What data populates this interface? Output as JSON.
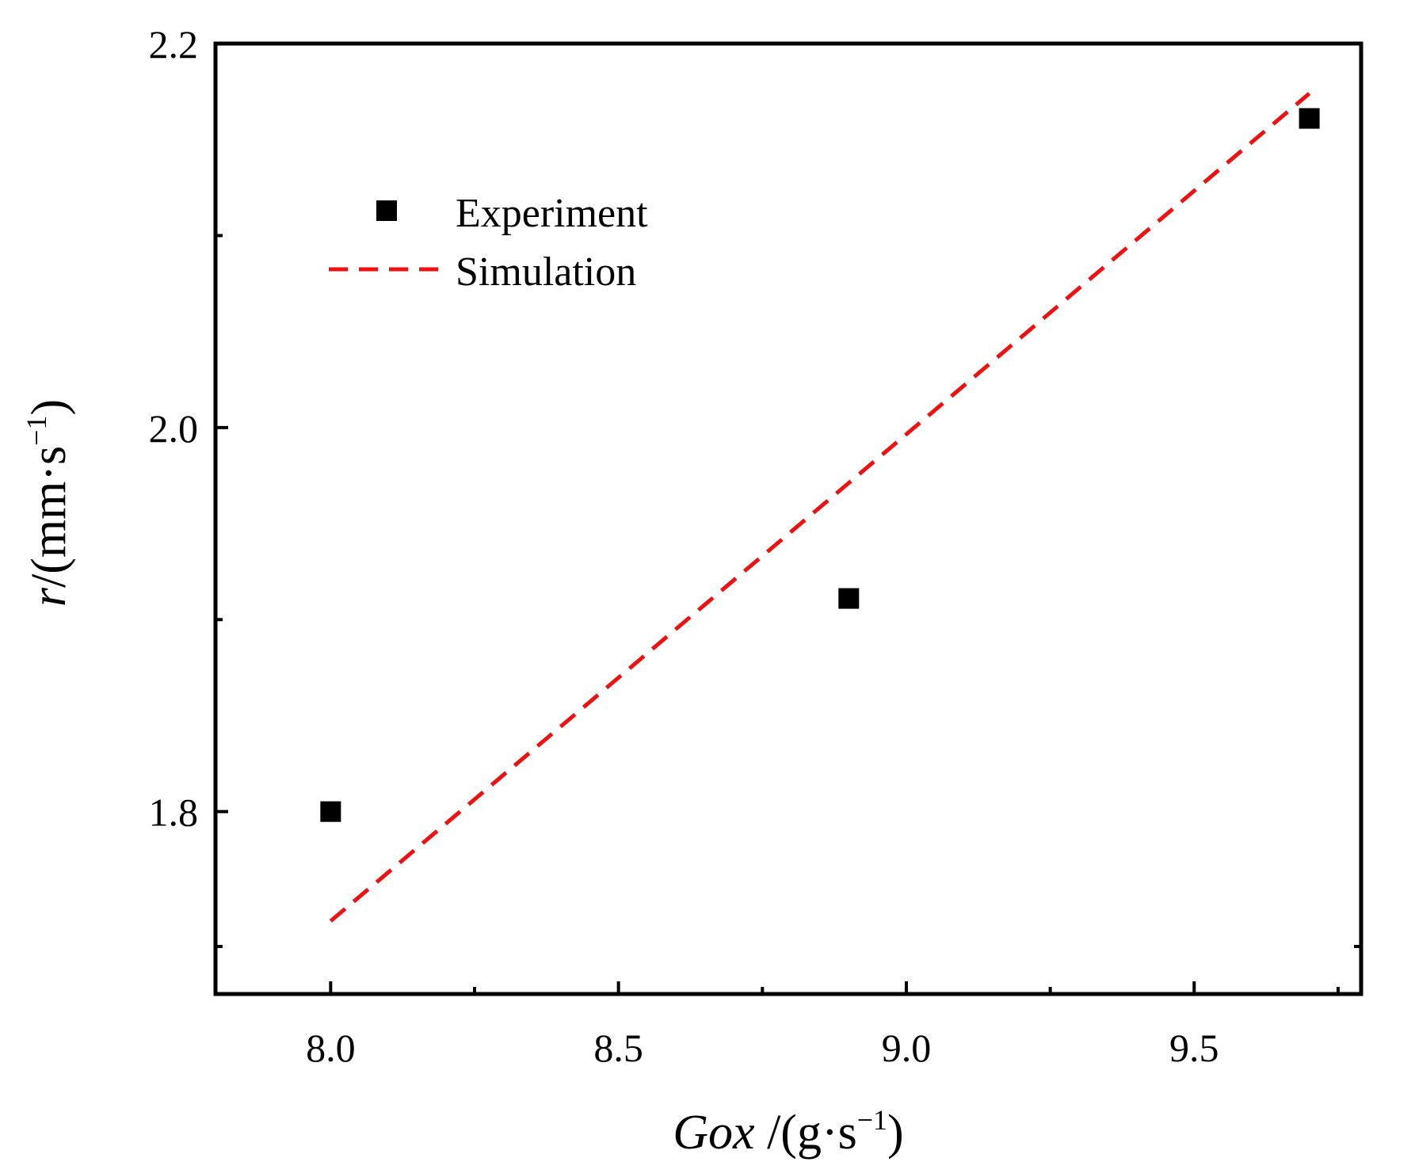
{
  "chart_data": {
    "type": "scatter",
    "title": "",
    "xlabel": {
      "italic": "Gox",
      "unit_open": " /(g·s",
      "exp": "−1",
      "unit_close": ")"
    },
    "ylabel": {
      "italic": "r",
      "unit_open": "/(mm·s",
      "exp": "−1",
      "unit_close": ")"
    },
    "xlim": [
      7.8,
      9.79
    ],
    "ylim": [
      1.705,
      2.2
    ],
    "x_ticks": [
      8.0,
      8.5,
      9.0,
      9.5
    ],
    "x_tick_labels": [
      "8.0",
      "8.5",
      "9.0",
      "9.5"
    ],
    "x_minor_ticks": [
      8.25,
      8.75,
      9.25,
      9.75
    ],
    "y_ticks": [
      1.8,
      2.0,
      2.2
    ],
    "y_tick_labels": [
      "1.8",
      "2.0",
      "2.2"
    ],
    "y_minor_ticks": [
      1.9,
      2.1
    ],
    "grid": false,
    "legend_position": "top-left",
    "series": [
      {
        "name": "Experiment",
        "kind": "scatter",
        "marker": "square",
        "color": "#000000",
        "points": [
          {
            "x": 8.0,
            "y": 1.8
          },
          {
            "x": 8.9,
            "y": 1.911
          },
          {
            "x": 9.7,
            "y": 2.161
          }
        ]
      },
      {
        "name": "Simulation",
        "kind": "line",
        "style": "dashed",
        "color": "#ee1111",
        "points": [
          {
            "x": 8.0,
            "y": 1.743
          },
          {
            "x": 9.7,
            "y": 2.174
          }
        ]
      }
    ]
  }
}
